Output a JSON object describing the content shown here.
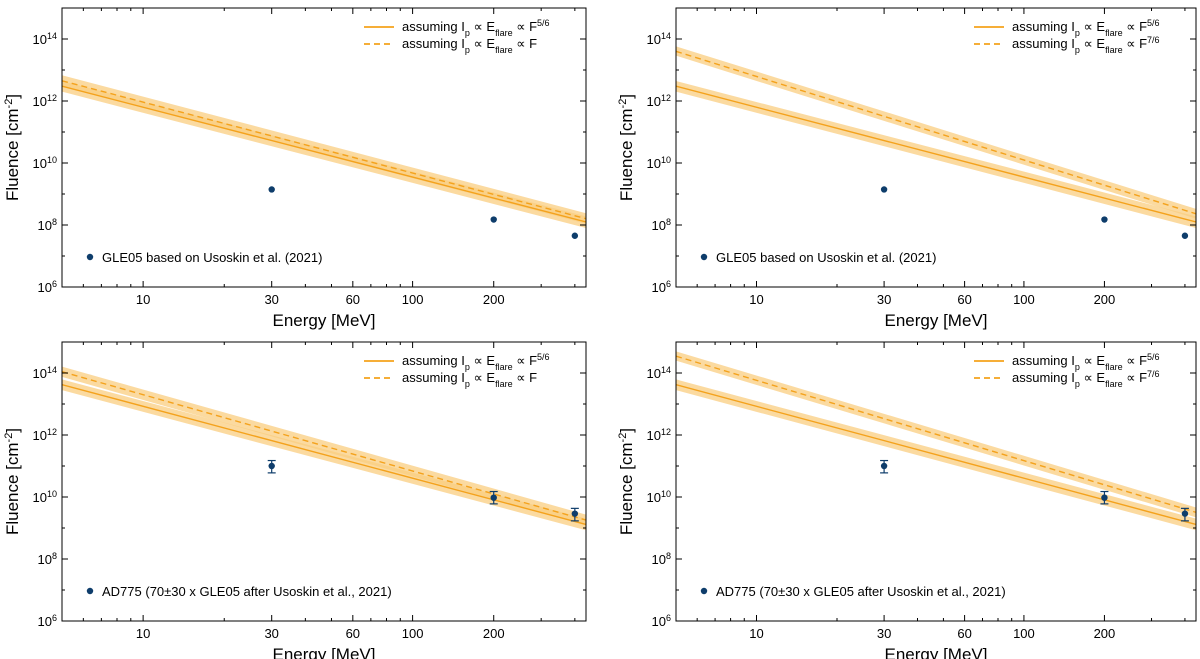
{
  "chart_data": [
    {
      "type": "line",
      "panel": "top-left",
      "xlabel": "Energy [MeV]",
      "ylabel": "Fluence [cm",
      "ylabel_sup": "-2",
      "ylabel_end": "]",
      "xscale": "log",
      "yscale": "log",
      "xlim": [
        5,
        440
      ],
      "ylim": [
        1000000.0,
        1000000000000000.0
      ],
      "xticks": [
        10,
        30,
        60,
        100,
        200
      ],
      "xtick_labels": [
        "10",
        "30",
        "60",
        "100",
        "200"
      ],
      "yticks": [
        6,
        8,
        10,
        12,
        14
      ],
      "ytick_labels": [
        "6",
        "8",
        "10",
        "12",
        "14"
      ],
      "ytick_base": "10",
      "legend_position": "top-right",
      "series": [
        {
          "name": "assuming Ip ∝ Eflare ∝ F5/6",
          "legend_parts": [
            "assuming I",
            "p",
            " ∝ E",
            "flare",
            " ∝ F",
            "5/6"
          ],
          "style": "solid",
          "x": [
            5,
            440
          ],
          "y": [
            3000000000000.0,
            125000000.0
          ],
          "band": [
            [
              2000000000000.0,
              4400000000000.0
            ],
            [
              80000000.0,
              190000000.0
            ]
          ]
        },
        {
          "name": "assuming Ip ∝ Eflare ∝ F",
          "legend_parts": [
            "assuming I",
            "p",
            " ∝ E",
            "flare",
            " ∝ F",
            ""
          ],
          "style": "dashed",
          "x": [
            5,
            440
          ],
          "y": [
            4500000000000.0,
            160000000.0
          ],
          "band": [
            [
              3000000000000.0,
              6800000000000.0
            ],
            [
              110000000.0,
              240000000.0
            ]
          ]
        }
      ],
      "points": {
        "label": "GLE05 based on Usoskin et al. (2021)",
        "x": [
          30,
          200,
          400
        ],
        "y": [
          1400000000.0,
          150000000.0,
          45000000.0
        ],
        "err_low": [
          null,
          null,
          null
        ],
        "err_high": [
          null,
          null,
          null
        ]
      }
    },
    {
      "type": "line",
      "panel": "top-right",
      "xlabel": "Energy [MeV]",
      "ylabel": "Fluence [cm",
      "ylabel_sup": "-2",
      "ylabel_end": "]",
      "xscale": "log",
      "yscale": "log",
      "xlim": [
        5,
        440
      ],
      "ylim": [
        1000000.0,
        1000000000000000.0
      ],
      "xticks": [
        10,
        30,
        60,
        100,
        200
      ],
      "xtick_labels": [
        "10",
        "30",
        "60",
        "100",
        "200"
      ],
      "yticks": [
        6,
        8,
        10,
        12,
        14
      ],
      "ytick_labels": [
        "6",
        "8",
        "10",
        "12",
        "14"
      ],
      "ytick_base": "10",
      "legend_position": "top-right",
      "series": [
        {
          "name": "assuming Ip ∝ Eflare ∝ F5/6",
          "legend_parts": [
            "assuming I",
            "p",
            " ∝ E",
            "flare",
            " ∝ F",
            "5/6"
          ],
          "style": "solid",
          "x": [
            5,
            440
          ],
          "y": [
            3000000000000.0,
            125000000.0
          ],
          "band": [
            [
              2000000000000.0,
              4400000000000.0
            ],
            [
              80000000.0,
              190000000.0
            ]
          ]
        },
        {
          "name": "assuming Ip ∝ Eflare ∝ F7/6",
          "legend_parts": [
            "assuming I",
            "p",
            " ∝ E",
            "flare",
            " ∝ F",
            "7/6"
          ],
          "style": "dashed",
          "x": [
            5,
            440
          ],
          "y": [
            40000000000000.0,
            230000000.0
          ],
          "band": [
            [
              29000000000000.0,
              58000000000000.0
            ],
            [
              160000000.0,
              330000000.0
            ]
          ]
        }
      ],
      "points": {
        "label": "GLE05 based on Usoskin et al. (2021)",
        "x": [
          30,
          200,
          400
        ],
        "y": [
          1400000000.0,
          150000000.0,
          45000000.0
        ],
        "err_low": [
          null,
          null,
          null
        ],
        "err_high": [
          null,
          null,
          null
        ]
      }
    },
    {
      "type": "line",
      "panel": "bottom-left",
      "xlabel": "Energy [MeV]",
      "ylabel": "Fluence [cm",
      "ylabel_sup": "-2",
      "ylabel_end": "]",
      "xscale": "log",
      "yscale": "log",
      "xlim": [
        5,
        440
      ],
      "ylim": [
        1000000.0,
        1000000000000000.0
      ],
      "xticks": [
        10,
        30,
        60,
        100,
        200
      ],
      "xtick_labels": [
        "10",
        "30",
        "60",
        "100",
        "200"
      ],
      "yticks": [
        6,
        8,
        10,
        12,
        14
      ],
      "ytick_labels": [
        "6",
        "8",
        "10",
        "12",
        "14"
      ],
      "ytick_base": "10",
      "legend_position": "top-right",
      "series": [
        {
          "name": "assuming Ip ∝ Eflare ∝ F5/6",
          "legend_parts": [
            "assuming I",
            "p",
            " ∝ E",
            "flare",
            " ∝ F",
            "5/6"
          ],
          "style": "solid",
          "x": [
            5,
            440
          ],
          "y": [
            42000000000000.0,
            1300000000.0
          ],
          "band": [
            [
              28000000000000.0,
              62000000000000.0
            ],
            [
              850000000.0,
              2000000000.0
            ]
          ]
        },
        {
          "name": "assuming Ip ∝ Eflare ∝ F",
          "legend_parts": [
            "assuming I",
            "p",
            " ∝ E",
            "flare",
            " ∝ F",
            ""
          ],
          "style": "dashed",
          "x": [
            5,
            440
          ],
          "y": [
            110000000000000.0,
            1800000000.0
          ],
          "band": [
            [
              75000000000000.0,
              160000000000000.0
            ],
            [
              1200000000.0,
              2700000000.0
            ]
          ]
        }
      ],
      "points": {
        "label": "AD775 (70±30 x GLE05 after Usoskin et al., 2021)",
        "x": [
          30,
          200,
          400
        ],
        "y": [
          100000000000.0,
          9500000000.0,
          2900000000.0
        ],
        "err_low": [
          60000000000.0,
          6000000000.0,
          1700000000.0
        ],
        "err_high": [
          150000000000.0,
          15000000000.0,
          4300000000.0
        ]
      }
    },
    {
      "type": "line",
      "panel": "bottom-right",
      "xlabel": "Energy [MeV]",
      "ylabel": "Fluence [cm",
      "ylabel_sup": "-2",
      "ylabel_end": "]",
      "xscale": "log",
      "yscale": "log",
      "xlim": [
        5,
        440
      ],
      "ylim": [
        1000000.0,
        1000000000000000.0
      ],
      "xticks": [
        10,
        30,
        60,
        100,
        200
      ],
      "xtick_labels": [
        "10",
        "30",
        "60",
        "100",
        "200"
      ],
      "yticks": [
        6,
        8,
        10,
        12,
        14
      ],
      "ytick_labels": [
        "6",
        "8",
        "10",
        "12",
        "14"
      ],
      "ytick_base": "10",
      "legend_position": "top-right",
      "series": [
        {
          "name": "assuming Ip ∝ Eflare ∝ F5/6",
          "legend_parts": [
            "assuming I",
            "p",
            " ∝ E",
            "flare",
            " ∝ F",
            "5/6"
          ],
          "style": "solid",
          "x": [
            5,
            440
          ],
          "y": [
            42000000000000.0,
            1300000000.0
          ],
          "band": [
            [
              28000000000000.0,
              62000000000000.0
            ],
            [
              850000000.0,
              2000000000.0
            ]
          ]
        },
        {
          "name": "assuming Ip ∝ Eflare ∝ F7/6",
          "legend_parts": [
            "assuming I",
            "p",
            " ∝ E",
            "flare",
            " ∝ F",
            "7/6"
          ],
          "style": "dashed",
          "x": [
            5,
            440
          ],
          "y": [
            350000000000000.0,
            3200000000.0
          ],
          "band": [
            [
              250000000000000.0,
              500000000000000.0
            ],
            [
              2200000000.0,
              4600000000.0
            ]
          ]
        }
      ],
      "points": {
        "label": "AD775 (70±30 x GLE05 after Usoskin et al., 2021)",
        "x": [
          30,
          200,
          400
        ],
        "y": [
          100000000000.0,
          9500000000.0,
          2900000000.0
        ],
        "err_low": [
          60000000000.0,
          6000000000.0,
          1700000000.0
        ],
        "err_high": [
          150000000000.0,
          15000000000.0,
          4300000000.0
        ]
      }
    }
  ],
  "colors": {
    "line": "#f4a21c",
    "band": "#f9cd80",
    "point": "#0e3d6b",
    "axis": "#000000"
  }
}
